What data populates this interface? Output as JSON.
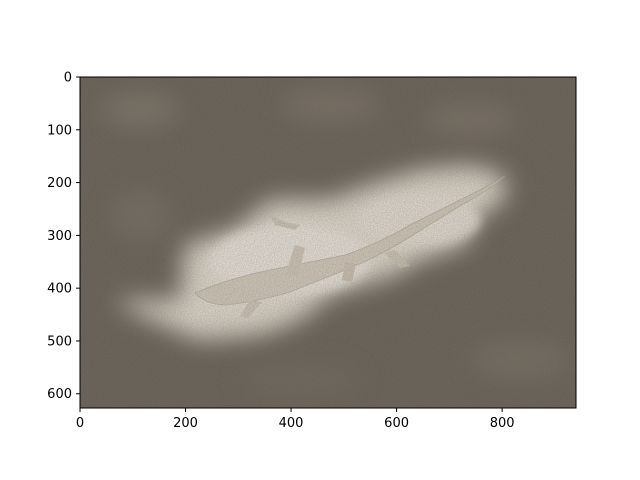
{
  "figure": {
    "image_description_name": "lizard-heatmap-overlay",
    "x_ticks": [
      "0",
      "200",
      "400",
      "600",
      "800"
    ],
    "x_tick_values": [
      0,
      200,
      400,
      600,
      800
    ],
    "y_ticks": [
      "0",
      "100",
      "200",
      "300",
      "400",
      "500",
      "600"
    ],
    "y_tick_values": [
      0,
      100,
      200,
      300,
      400,
      500,
      600
    ],
    "x_range": [
      0,
      940
    ],
    "y_range": [
      0,
      627
    ],
    "colors": {
      "dark_sand": "#5a5249",
      "mid_sand": "#7d7468",
      "highlight": "#efe9df",
      "lizard": "#d9cfc1"
    }
  }
}
